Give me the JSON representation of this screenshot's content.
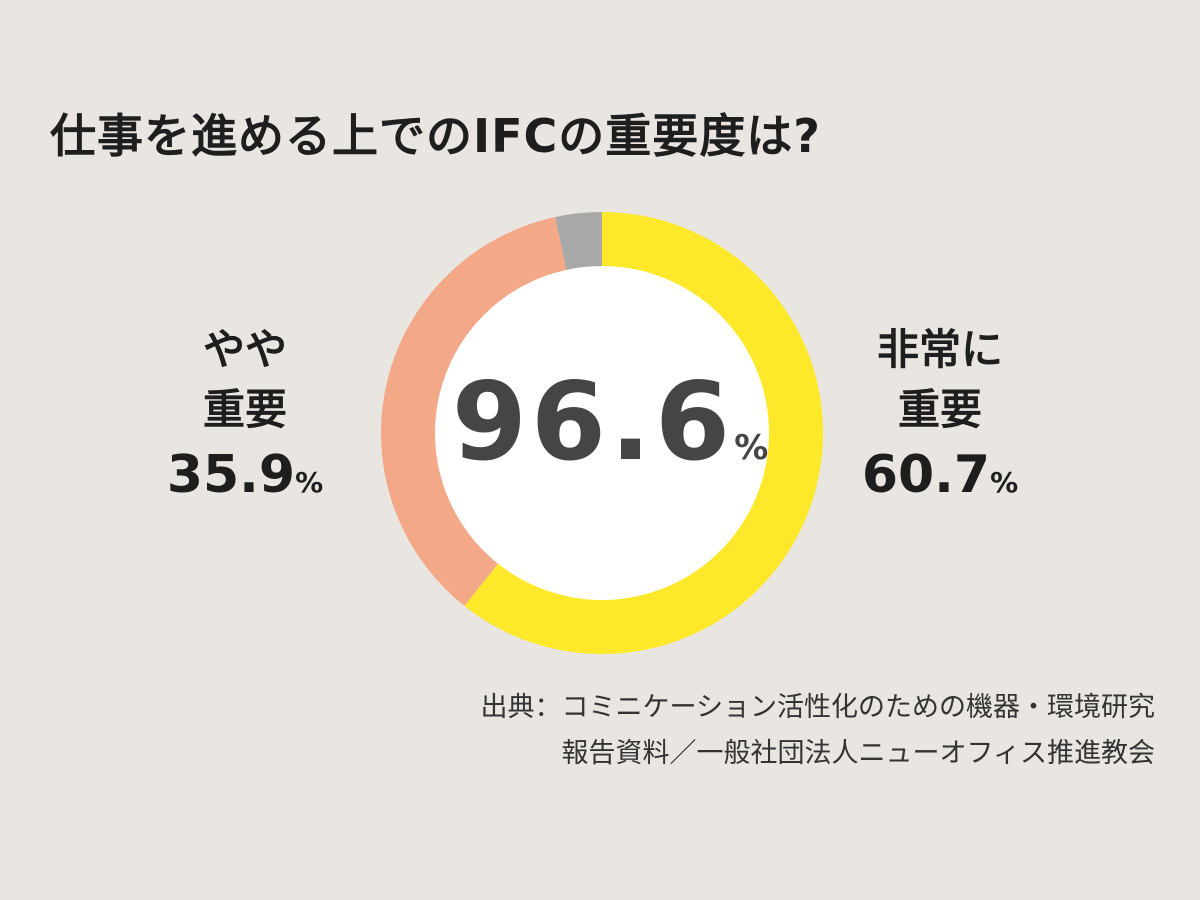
{
  "title": "仕事を進める上でのIFCの重要度は?",
  "chart_data": {
    "type": "pie",
    "title": "仕事を進める上でのIFCの重要度は?",
    "center_label": {
      "value": "96.6",
      "unit": "%"
    },
    "slices": [
      {
        "name": "非常に重要",
        "label_lines": [
          "非常に",
          "重要"
        ],
        "value": 60.7,
        "color": "#fde829"
      },
      {
        "name": "やや重要",
        "label_lines": [
          "やや",
          "重要"
        ],
        "value": 35.9,
        "color": "#f3a888"
      },
      {
        "name": "",
        "value": 3.4,
        "color": "#a8a8a8"
      }
    ],
    "unit": "%"
  },
  "source": {
    "line1": "出典：コミニケーション活性化のための機器・環境研究",
    "line2": "報告資料／一般社団法人ニューオフィス推進教会"
  }
}
